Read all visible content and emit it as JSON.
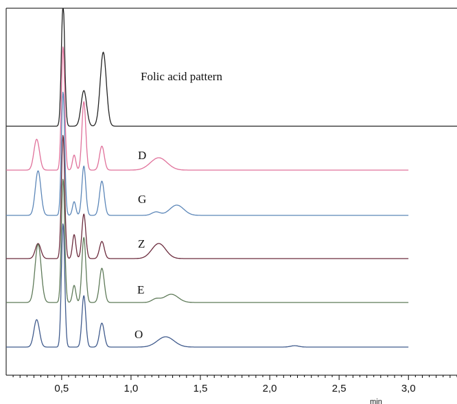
{
  "chart_data": {
    "type": "line",
    "title": "",
    "xlabel": "",
    "x_unit": "min",
    "ylabel": "",
    "xlim": [
      0.1,
      3.35
    ],
    "x_ticks": [
      0.5,
      1.0,
      1.5,
      2.0,
      2.5,
      3.0
    ],
    "x_tick_labels": [
      "0,5",
      "1,0",
      "1,5",
      "2,0",
      "2,5",
      "3,0"
    ],
    "x_end": 3.0,
    "grid": false,
    "legend": "none",
    "colors": {
      "standard": "#222222",
      "D": "#e0709a",
      "G": "#5b86b8",
      "Z": "#6b2a3c",
      "E": "#5e7a58",
      "O": "#3f5a8c",
      "axis": "#000000"
    },
    "series": [
      {
        "name": "Folic acid pattern",
        "x_end": 3.35,
        "peaks": [
          {
            "x": 0.51,
            "height": 180,
            "width": 0.012
          },
          {
            "x": 0.66,
            "height": 52,
            "width": 0.02
          },
          {
            "x": 0.8,
            "height": 108,
            "width": 0.022
          }
        ]
      },
      {
        "name": "D",
        "peaks": [
          {
            "x": 0.32,
            "height": 45,
            "width": 0.02
          },
          {
            "x": 0.51,
            "height": 180,
            "width": 0.012
          },
          {
            "x": 0.59,
            "height": 22,
            "width": 0.012
          },
          {
            "x": 0.66,
            "height": 100,
            "width": 0.014
          },
          {
            "x": 0.79,
            "height": 35,
            "width": 0.017
          },
          {
            "x": 1.2,
            "height": 18,
            "width": 0.06
          }
        ]
      },
      {
        "name": "G",
        "peaks": [
          {
            "x": 0.33,
            "height": 65,
            "width": 0.02
          },
          {
            "x": 0.51,
            "height": 180,
            "width": 0.012
          },
          {
            "x": 0.59,
            "height": 20,
            "width": 0.012
          },
          {
            "x": 0.66,
            "height": 72,
            "width": 0.014
          },
          {
            "x": 0.79,
            "height": 50,
            "width": 0.017
          },
          {
            "x": 1.18,
            "height": 5,
            "width": 0.03
          },
          {
            "x": 1.33,
            "height": 15,
            "width": 0.05
          }
        ]
      },
      {
        "name": "Z",
        "peaks": [
          {
            "x": 0.33,
            "height": 22,
            "width": 0.02
          },
          {
            "x": 0.51,
            "height": 180,
            "width": 0.012
          },
          {
            "x": 0.59,
            "height": 35,
            "width": 0.012
          },
          {
            "x": 0.66,
            "height": 65,
            "width": 0.014
          },
          {
            "x": 0.79,
            "height": 25,
            "width": 0.017
          },
          {
            "x": 1.2,
            "height": 22,
            "width": 0.05
          }
        ]
      },
      {
        "name": "E",
        "peaks": [
          {
            "x": 0.33,
            "height": 85,
            "width": 0.022
          },
          {
            "x": 0.51,
            "height": 180,
            "width": 0.012
          },
          {
            "x": 0.59,
            "height": 25,
            "width": 0.012
          },
          {
            "x": 0.66,
            "height": 95,
            "width": 0.014
          },
          {
            "x": 0.79,
            "height": 50,
            "width": 0.017
          },
          {
            "x": 1.18,
            "height": 5,
            "width": 0.03
          },
          {
            "x": 1.29,
            "height": 12,
            "width": 0.05
          }
        ]
      },
      {
        "name": "O",
        "peaks": [
          {
            "x": 0.32,
            "height": 40,
            "width": 0.02
          },
          {
            "x": 0.51,
            "height": 180,
            "width": 0.012
          },
          {
            "x": 0.66,
            "height": 75,
            "width": 0.014
          },
          {
            "x": 0.79,
            "height": 35,
            "width": 0.017
          },
          {
            "x": 1.25,
            "height": 15,
            "width": 0.06
          },
          {
            "x": 2.18,
            "height": 2,
            "width": 0.03
          }
        ]
      }
    ]
  }
}
